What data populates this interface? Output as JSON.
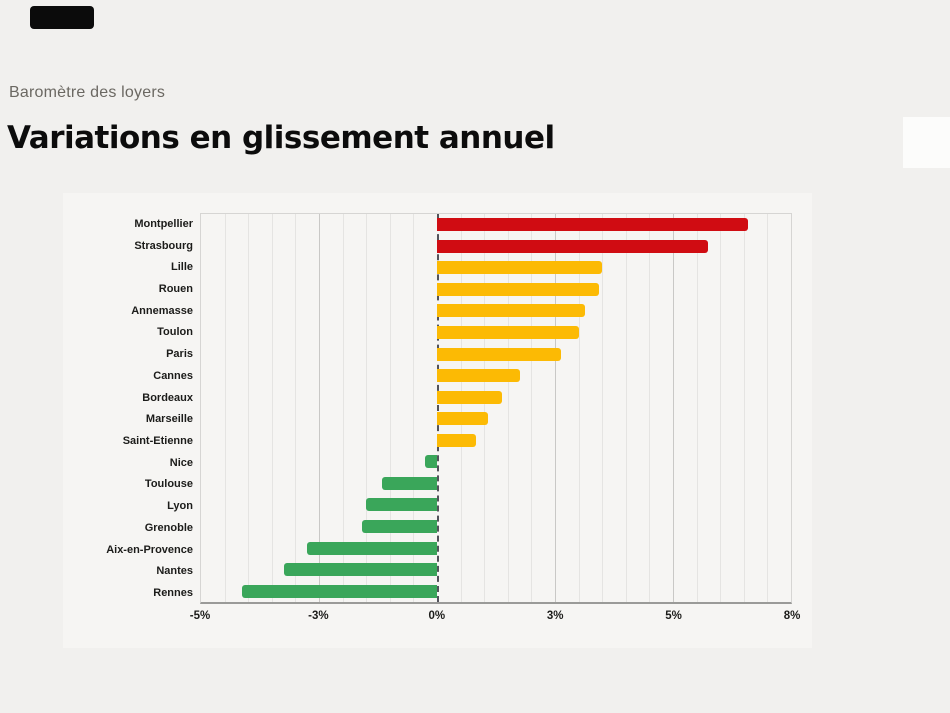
{
  "page": {
    "subtitle": "Baromètre des loyers",
    "title": "Variations en glissement annuel"
  },
  "colors": {
    "background": "#f1f0ee",
    "widget_background": "#f6f5f3",
    "subtitle_gray": "#6b6862",
    "red": "#d00c12",
    "amber": "#fcba04",
    "green": "#3aa65a"
  },
  "chart_data": {
    "type": "bar",
    "orientation": "horizontal",
    "title": "Variations en glissement annuel",
    "subtitle": "Baromètre des loyers",
    "unit": "%",
    "categories": [
      "Montpellier",
      "Strasbourg",
      "Lille",
      "Rouen",
      "Annemasse",
      "Toulon",
      "Paris",
      "Cannes",
      "Bordeaux",
      "Marseille",
      "Saint-Etienne",
      "Nice",
      "Toulouse",
      "Lyon",
      "Grenoble",
      "Aix-en-Provence",
      "Nantes",
      "Rennes"
    ],
    "values": [
      6.9,
      5.9,
      3.8,
      3.75,
      3.5,
      3.4,
      3.1,
      2.1,
      1.65,
      1.3,
      1.0,
      -0.3,
      -1.4,
      -1.8,
      -1.9,
      -3.2,
      -3.6,
      -4.3
    ],
    "bar_colors": [
      "red",
      "red",
      "amber",
      "amber",
      "amber",
      "amber",
      "amber",
      "amber",
      "amber",
      "amber",
      "amber",
      "green",
      "green",
      "green",
      "green",
      "green",
      "green",
      "green"
    ],
    "x_tick_labels": [
      "-5%",
      "-3%",
      "0%",
      "3%",
      "5%",
      "8%"
    ],
    "x_tick_values": [
      -5,
      -3,
      0,
      3,
      5,
      8
    ],
    "axis_note": "tick labels evenly spaced along axis (piecewise-linear scale), 5 minor grid divisions per labelled interval",
    "minor_divisions_per_interval": 5,
    "grid": true,
    "zero_line": "dashed dark vertical",
    "legend": "none"
  }
}
